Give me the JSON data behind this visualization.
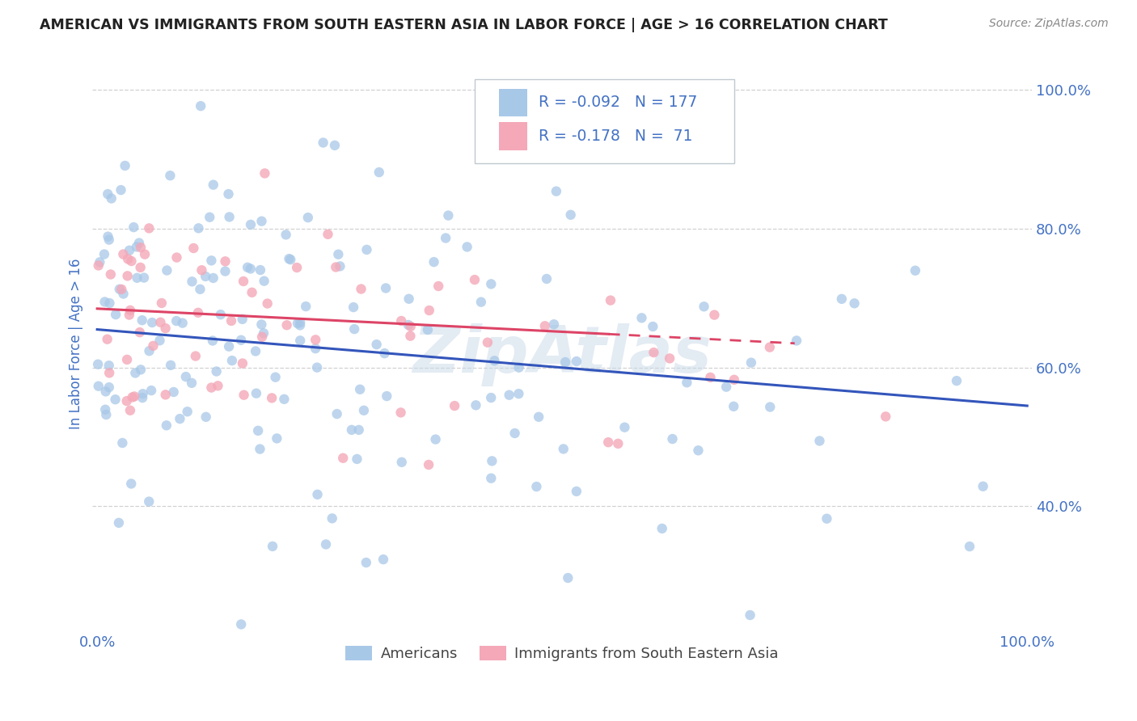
{
  "title": "AMERICAN VS IMMIGRANTS FROM SOUTH EASTERN ASIA IN LABOR FORCE | AGE > 16 CORRELATION CHART",
  "source": "Source: ZipAtlas.com",
  "ylabel": "In Labor Force | Age > 16",
  "x_min": 0.0,
  "x_max": 1.0,
  "y_min": 0.22,
  "y_max": 1.05,
  "y_ticks": [
    0.4,
    0.6,
    0.8,
    1.0
  ],
  "y_tick_labels": [
    "40.0%",
    "60.0%",
    "80.0%",
    "100.0%"
  ],
  "american_R": -0.092,
  "american_N": 177,
  "immigrant_R": -0.178,
  "immigrant_N": 71,
  "american_color": "#a8c8e8",
  "immigrant_color": "#f4a8b8",
  "american_line_color": "#3355bb",
  "immigrant_line_color": "#dd4466",
  "legend_label_americans": "Americans",
  "legend_label_immigrants": "Immigrants from South Eastern Asia",
  "watermark": "ZipAtlas",
  "background_color": "#ffffff",
  "grid_color": "#cccccc",
  "title_color": "#222222",
  "axis_label_color": "#4472c4",
  "legend_value_color": "#4472c4",
  "am_seed": 42,
  "im_seed": 123,
  "am_line_x0": 0.0,
  "am_line_x1": 1.0,
  "am_line_y0": 0.655,
  "am_line_y1": 0.545,
  "im_line_x0": 0.0,
  "im_line_x1": 0.75,
  "im_line_y0": 0.685,
  "im_line_y1": 0.635
}
